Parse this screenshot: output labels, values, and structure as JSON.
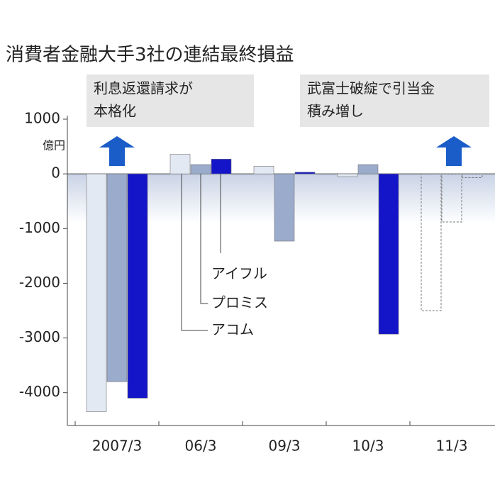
{
  "chart_data": {
    "type": "bar",
    "title": "消費者金融大手3社の連結最終損益",
    "y_unit": "億円",
    "annotations": [
      [
        "利息返還請求が",
        "本格化"
      ],
      [
        "武富士破綻で引当金",
        "積み増し"
      ]
    ],
    "categories": [
      "2007/3",
      "06/3",
      "09/3",
      "10/3",
      "11/3"
    ],
    "dashed": [
      false,
      false,
      false,
      false,
      true
    ],
    "series": [
      {
        "name": "アコム",
        "color": "#e3e9f3",
        "values": [
          -4350,
          360,
          140,
          -50,
          -2500
        ]
      },
      {
        "name": "プロミス",
        "color": "#9aabcb",
        "values": [
          -3800,
          170,
          -1230,
          170,
          -880
        ]
      },
      {
        "name": "アイフル",
        "color": "#1414c8",
        "values": [
          -4100,
          270,
          30,
          -2930,
          -70
        ]
      }
    ],
    "ylim": [
      -4600,
      1000
    ],
    "yticks": [
      1000,
      0,
      -1000,
      -2000,
      -3000,
      -4000
    ]
  }
}
